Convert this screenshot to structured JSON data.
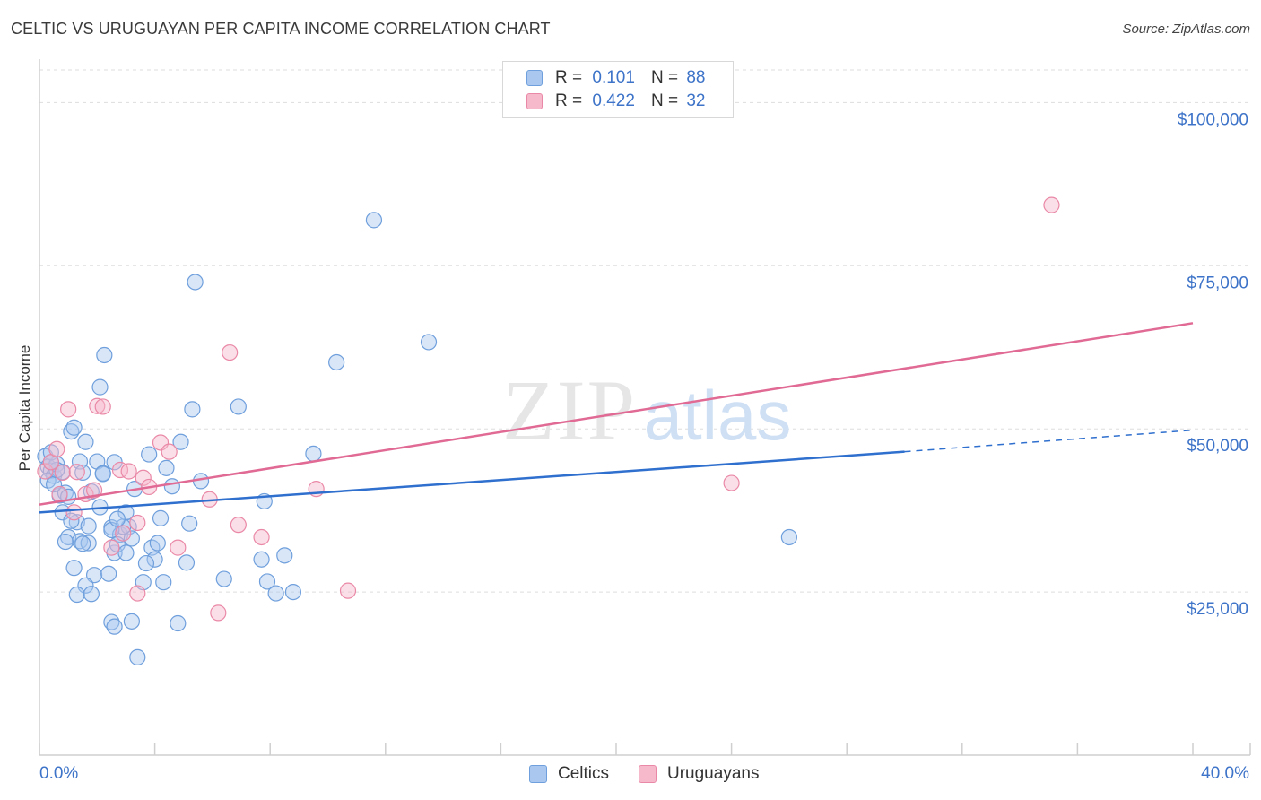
{
  "title": "CELTIC VS URUGUAYAN PER CAPITA INCOME CORRELATION CHART",
  "source": "Source: ZipAtlas.com",
  "watermark": {
    "zip": "ZIP",
    "atlas": "atlas"
  },
  "legend_top": {
    "rows": [
      {
        "r_label": "R =",
        "r_value": "0.101",
        "n_label": "N =",
        "n_value": "88"
      },
      {
        "r_label": "R =",
        "r_value": "0.422",
        "n_label": "N =",
        "n_value": "32"
      }
    ]
  },
  "legend_bottom": {
    "items": [
      "Celtics",
      "Uruguayans"
    ]
  },
  "colors": {
    "celtics_fill": "#a9c7ef",
    "celtics_stroke": "#6f9fdc",
    "celtics_line": "#2f6fce",
    "uruguayans_fill": "#f6b9cb",
    "uruguayans_stroke": "#ea89a7",
    "uruguayans_line": "#e06a94",
    "axis_text": "#3d73c8",
    "grid": "#dddddd"
  },
  "chart_data": {
    "type": "scatter",
    "title": "CELTIC VS URUGUAYAN PER CAPITA INCOME CORRELATION CHART",
    "xlabel": "",
    "ylabel": "Per Capita Income",
    "xlim": [
      0,
      40
    ],
    "ylim": [
      0,
      105000
    ],
    "x_tick_labels": [
      "0.0%",
      "40.0%"
    ],
    "y_ticks": [
      25000,
      50000,
      75000,
      100000
    ],
    "y_tick_labels": [
      "$25,000",
      "$50,000",
      "$75,000",
      "$100,000"
    ],
    "series": [
      {
        "name": "Celtics",
        "r": 0.101,
        "n": 88,
        "trend": {
          "x_start": 0,
          "y_start": 37200,
          "x_solid_end": 30,
          "y_solid_end": 46500,
          "x_end": 40,
          "y_end": 49800
        },
        "points": [
          [
            0.2,
            45800
          ],
          [
            0.3,
            44200
          ],
          [
            0.4,
            43600
          ],
          [
            0.5,
            42800
          ],
          [
            0.3,
            42100
          ],
          [
            0.6,
            44600
          ],
          [
            0.4,
            46400
          ],
          [
            0.8,
            43400
          ],
          [
            0.7,
            39800
          ],
          [
            0.9,
            40200
          ],
          [
            1.0,
            39600
          ],
          [
            0.8,
            37200
          ],
          [
            1.1,
            49600
          ],
          [
            1.2,
            50200
          ],
          [
            1.4,
            45000
          ],
          [
            1.6,
            48000
          ],
          [
            2.0,
            45000
          ],
          [
            2.2,
            43200
          ],
          [
            2.6,
            44900
          ],
          [
            2.1,
            56400
          ],
          [
            2.25,
            61300
          ],
          [
            1.5,
            43300
          ],
          [
            1.8,
            40400
          ],
          [
            1.3,
            35700
          ],
          [
            1.0,
            33400
          ],
          [
            1.4,
            32800
          ],
          [
            1.7,
            32500
          ],
          [
            1.2,
            28700
          ],
          [
            1.9,
            27600
          ],
          [
            1.6,
            26000
          ],
          [
            1.3,
            24600
          ],
          [
            1.8,
            24700
          ],
          [
            2.4,
            27800
          ],
          [
            2.5,
            34900
          ],
          [
            2.6,
            31000
          ],
          [
            2.8,
            33800
          ],
          [
            2.7,
            32300
          ],
          [
            3.0,
            31000
          ],
          [
            3.1,
            35000
          ],
          [
            3.2,
            33200
          ],
          [
            3.3,
            40800
          ],
          [
            3.6,
            26500
          ],
          [
            3.9,
            31800
          ],
          [
            4.0,
            30000
          ],
          [
            4.3,
            26500
          ],
          [
            4.2,
            36300
          ],
          [
            4.4,
            44000
          ],
          [
            4.6,
            41200
          ],
          [
            4.9,
            48000
          ],
          [
            5.1,
            29500
          ],
          [
            5.2,
            35500
          ],
          [
            5.3,
            53000
          ],
          [
            5.6,
            42000
          ],
          [
            6.4,
            27000
          ],
          [
            6.9,
            53400
          ],
          [
            7.8,
            38900
          ],
          [
            7.9,
            26600
          ],
          [
            8.2,
            24800
          ],
          [
            8.5,
            30600
          ],
          [
            8.8,
            25000
          ],
          [
            9.5,
            46200
          ],
          [
            10.3,
            60200
          ],
          [
            11.6,
            82000
          ],
          [
            13.5,
            63300
          ],
          [
            5.4,
            72500
          ],
          [
            2.5,
            20400
          ],
          [
            2.6,
            19700
          ],
          [
            3.2,
            20500
          ],
          [
            4.8,
            20200
          ],
          [
            3.4,
            15000
          ],
          [
            0.9,
            32700
          ],
          [
            1.5,
            32400
          ],
          [
            2.9,
            35000
          ],
          [
            3.0,
            37200
          ],
          [
            2.1,
            38000
          ],
          [
            0.5,
            41500
          ],
          [
            1.1,
            35900
          ],
          [
            3.8,
            46100
          ],
          [
            2.2,
            43100
          ],
          [
            0.6,
            43700
          ],
          [
            7.7,
            30000
          ],
          [
            26.0,
            33400
          ],
          [
            3.7,
            29400
          ],
          [
            4.1,
            32500
          ],
          [
            2.5,
            34500
          ],
          [
            0.4,
            44900
          ],
          [
            1.7,
            35100
          ],
          [
            2.7,
            36200
          ]
        ]
      },
      {
        "name": "Uruguayans",
        "r": 0.422,
        "n": 32,
        "trend": {
          "x_start": 0,
          "y_start": 38400,
          "x_end": 40,
          "y_end": 66200
        },
        "points": [
          [
            0.2,
            43500
          ],
          [
            0.4,
            44900
          ],
          [
            0.6,
            46900
          ],
          [
            0.8,
            43300
          ],
          [
            1.0,
            53000
          ],
          [
            1.3,
            43400
          ],
          [
            1.6,
            40000
          ],
          [
            1.9,
            40600
          ],
          [
            2.0,
            53500
          ],
          [
            2.2,
            53400
          ],
          [
            2.8,
            43700
          ],
          [
            3.1,
            43500
          ],
          [
            3.4,
            35600
          ],
          [
            3.6,
            42500
          ],
          [
            3.8,
            41100
          ],
          [
            4.2,
            47900
          ],
          [
            4.5,
            46500
          ],
          [
            4.8,
            31800
          ],
          [
            5.9,
            39200
          ],
          [
            6.6,
            61700
          ],
          [
            6.9,
            35300
          ],
          [
            7.7,
            33400
          ],
          [
            9.6,
            40800
          ],
          [
            10.7,
            25200
          ],
          [
            2.5,
            31800
          ],
          [
            3.4,
            24800
          ],
          [
            6.2,
            21800
          ],
          [
            24.0,
            41700
          ],
          [
            35.1,
            84300
          ],
          [
            1.2,
            37200
          ],
          [
            0.7,
            40000
          ],
          [
            2.9,
            34000
          ]
        ]
      }
    ]
  }
}
